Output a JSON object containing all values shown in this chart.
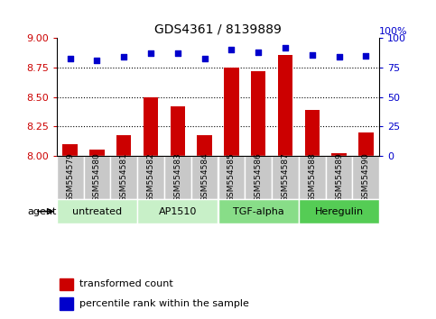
{
  "title": "GDS4361 / 8139889",
  "samples": [
    "GSM554579",
    "GSM554580",
    "GSM554581",
    "GSM554582",
    "GSM554583",
    "GSM554584",
    "GSM554585",
    "GSM554586",
    "GSM554587",
    "GSM554588",
    "GSM554589",
    "GSM554590"
  ],
  "bar_values": [
    8.1,
    8.05,
    8.17,
    8.5,
    8.42,
    8.17,
    8.75,
    8.72,
    8.86,
    8.39,
    8.02,
    8.2
  ],
  "percentile_values": [
    83,
    81,
    84,
    87,
    87,
    83,
    90,
    88,
    92,
    86,
    84,
    85
  ],
  "ylim_left": [
    8.0,
    9.0
  ],
  "ylim_right": [
    0,
    100
  ],
  "yticks_left": [
    8.0,
    8.25,
    8.5,
    8.75,
    9.0
  ],
  "yticks_right": [
    0,
    25,
    50,
    75,
    100
  ],
  "bar_color": "#cc0000",
  "dot_color": "#0000cc",
  "agents": [
    {
      "label": "untreated",
      "start": 0,
      "end": 3
    },
    {
      "label": "AP1510",
      "start": 3,
      "end": 6
    },
    {
      "label": "TGF-alpha",
      "start": 6,
      "end": 9
    },
    {
      "label": "Heregulin",
      "start": 9,
      "end": 12
    }
  ],
  "agent_colors": [
    "#c8f0c8",
    "#c8f0c8",
    "#88dd88",
    "#55cc55"
  ],
  "sample_bg_color": "#c8c8c8",
  "sample_border_color": "#ffffff",
  "legend_bar_label": "transformed count",
  "legend_dot_label": "percentile rank within the sample",
  "agent_label": "agent",
  "background_color": "#ffffff",
  "tick_label_color_left": "#cc0000",
  "tick_label_color_right": "#0000cc",
  "grid_color": "#000000",
  "spine_color": "#000000",
  "hundred_pct_label": "100%"
}
